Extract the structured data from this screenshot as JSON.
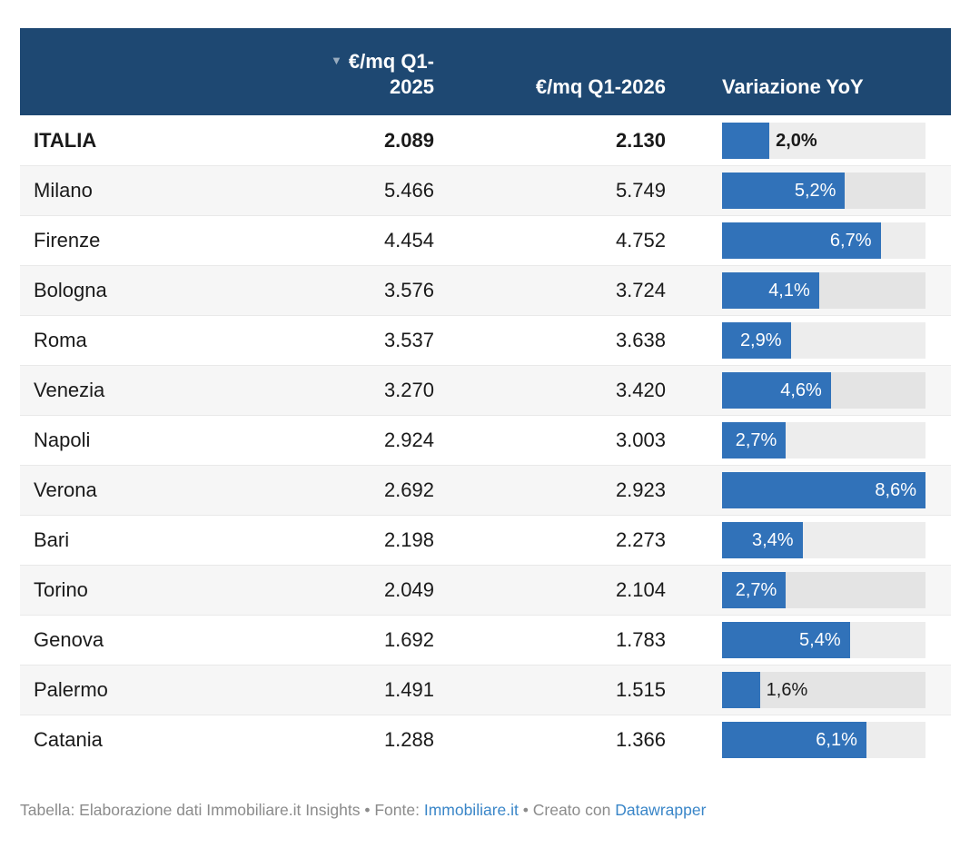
{
  "header": {
    "sort_icon": "▼",
    "col_city": "",
    "col_2025_line1": "€/mq Q1-",
    "col_2025_line2": "2025",
    "col_2026": "€/mq Q1-2026",
    "col_yoy": "Variazione YoY"
  },
  "chart_data": {
    "type": "table",
    "title": "",
    "columns": [
      "",
      "€/mq Q1-2025",
      "€/mq Q1-2026",
      "Variazione YoY"
    ],
    "bar_axis_max": 8.6,
    "rows": [
      {
        "name": "ITALIA",
        "q1_2025": "2.089",
        "q1_2026": "2.130",
        "yoy": 2.0,
        "yoy_label": "2,0%",
        "bold": true,
        "label_inside": false
      },
      {
        "name": "Milano",
        "q1_2025": "5.466",
        "q1_2026": "5.749",
        "yoy": 5.2,
        "yoy_label": "5,2%",
        "bold": false,
        "label_inside": true
      },
      {
        "name": "Firenze",
        "q1_2025": "4.454",
        "q1_2026": "4.752",
        "yoy": 6.7,
        "yoy_label": "6,7%",
        "bold": false,
        "label_inside": true
      },
      {
        "name": "Bologna",
        "q1_2025": "3.576",
        "q1_2026": "3.724",
        "yoy": 4.1,
        "yoy_label": "4,1%",
        "bold": false,
        "label_inside": true
      },
      {
        "name": "Roma",
        "q1_2025": "3.537",
        "q1_2026": "3.638",
        "yoy": 2.9,
        "yoy_label": "2,9%",
        "bold": false,
        "label_inside": true
      },
      {
        "name": "Venezia",
        "q1_2025": "3.270",
        "q1_2026": "3.420",
        "yoy": 4.6,
        "yoy_label": "4,6%",
        "bold": false,
        "label_inside": true
      },
      {
        "name": "Napoli",
        "q1_2025": "2.924",
        "q1_2026": "3.003",
        "yoy": 2.7,
        "yoy_label": "2,7%",
        "bold": false,
        "label_inside": true
      },
      {
        "name": "Verona",
        "q1_2025": "2.692",
        "q1_2026": "2.923",
        "yoy": 8.6,
        "yoy_label": "8,6%",
        "bold": false,
        "label_inside": true
      },
      {
        "name": "Bari",
        "q1_2025": "2.198",
        "q1_2026": "2.273",
        "yoy": 3.4,
        "yoy_label": "3,4%",
        "bold": false,
        "label_inside": true
      },
      {
        "name": "Torino",
        "q1_2025": "2.049",
        "q1_2026": "2.104",
        "yoy": 2.7,
        "yoy_label": "2,7%",
        "bold": false,
        "label_inside": true
      },
      {
        "name": "Genova",
        "q1_2025": "1.692",
        "q1_2026": "1.783",
        "yoy": 5.4,
        "yoy_label": "5,4%",
        "bold": false,
        "label_inside": true
      },
      {
        "name": "Palermo",
        "q1_2025": "1.491",
        "q1_2026": "1.515",
        "yoy": 1.6,
        "yoy_label": "1,6%",
        "bold": false,
        "label_inside": false
      },
      {
        "name": "Catania",
        "q1_2025": "1.288",
        "q1_2026": "1.366",
        "yoy": 6.1,
        "yoy_label": "6,1%",
        "bold": false,
        "label_inside": true
      }
    ]
  },
  "footer": {
    "prefix": "Tabella: Elaborazione dati Immobiliare.it Insights • Fonte: ",
    "link1": "Immobiliare.it",
    "middle": " • Creato con ",
    "link2": "Datawrapper"
  },
  "colors": {
    "header_bg": "#1e4872",
    "bar_fill": "#3172b9",
    "bar_track": "#ededed",
    "bar_track_striped": "#e4e4e4",
    "row_stripe": "#f6f6f6",
    "link": "#3a86c8",
    "footer_text": "#8b8b8b"
  }
}
